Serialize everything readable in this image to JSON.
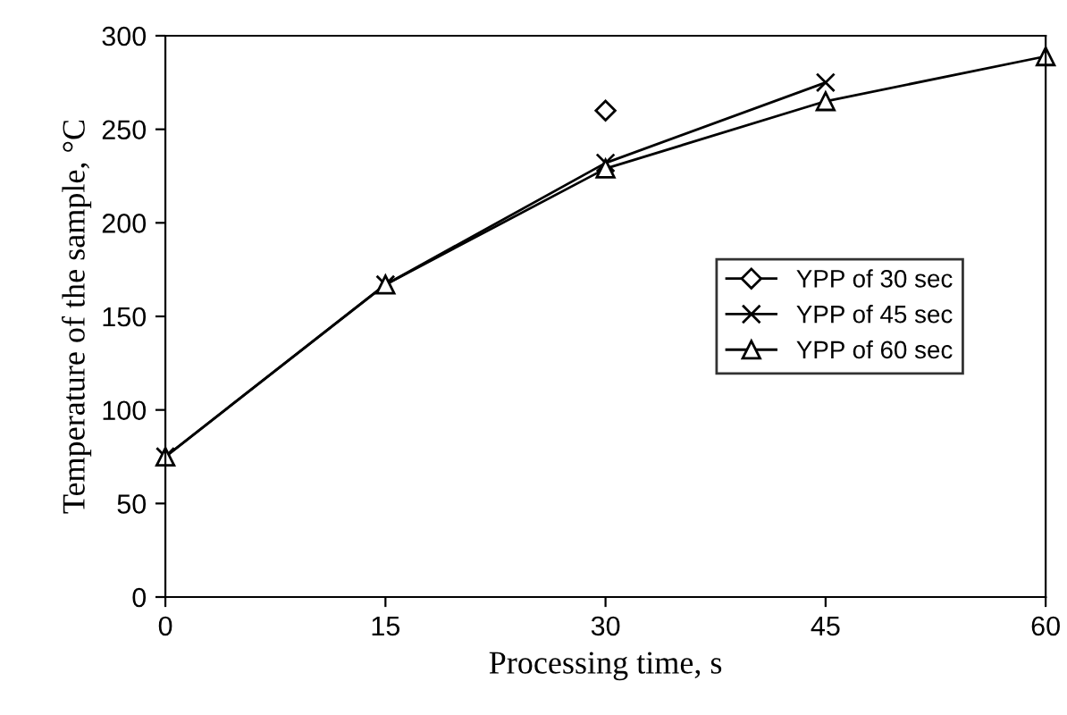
{
  "chart_data": {
    "type": "line",
    "xlabel": "Processing time, s",
    "ylabel": "Temperature of the sample, °C",
    "xlim": [
      0,
      60
    ],
    "xticks": [
      0,
      15,
      30,
      45,
      60
    ],
    "ylim": [
      0,
      300
    ],
    "yticks": [
      0,
      50,
      100,
      150,
      200,
      250,
      300
    ],
    "grid": false,
    "legend": "right",
    "line_style": "solid",
    "series": [
      {
        "name": "YPP of 30 sec",
        "color": "#000000",
        "marker": "diamond",
        "x": [
          30
        ],
        "values": [
          260
        ]
      },
      {
        "name": "YPP of 45 sec",
        "color": "#000000",
        "marker": "cross",
        "x": [
          0,
          15,
          30,
          45
        ],
        "values": [
          75,
          167,
          232,
          275
        ]
      },
      {
        "name": "YPP of 60 sec",
        "color": "#000000",
        "marker": "triangle",
        "x": [
          0,
          15,
          30,
          45,
          60
        ],
        "values": [
          75,
          167,
          229,
          265,
          289
        ]
      }
    ]
  }
}
